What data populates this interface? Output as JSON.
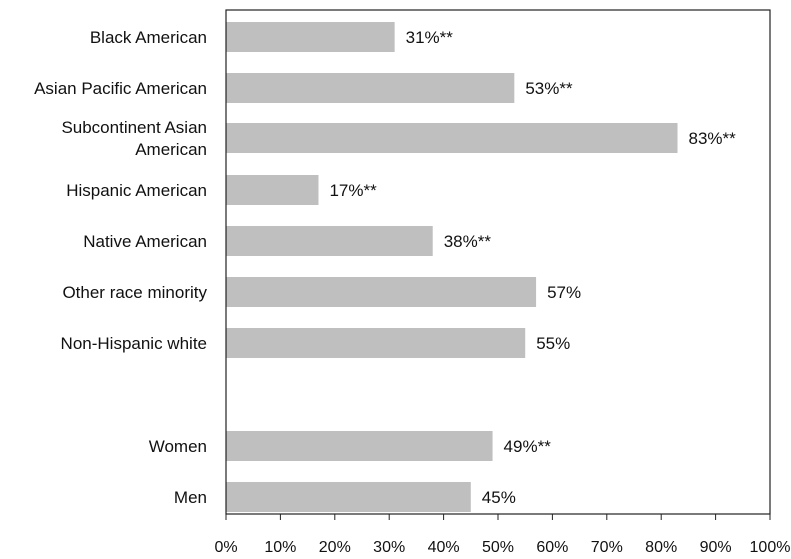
{
  "chart_data": {
    "type": "bar",
    "orientation": "horizontal",
    "xlim": [
      0,
      100
    ],
    "grid": false,
    "bar_color": "#bfbfbf",
    "x_ticks": [
      "0%",
      "10%",
      "20%",
      "30%",
      "40%",
      "50%",
      "60%",
      "70%",
      "80%",
      "90%",
      "100%"
    ],
    "categories": [
      {
        "label": [
          "Black American"
        ],
        "value": 31,
        "value_label": "31%**"
      },
      {
        "label": [
          "Asian Pacific American"
        ],
        "value": 53,
        "value_label": "53%**"
      },
      {
        "label": [
          "Subcontinent Asian",
          "American"
        ],
        "value": 83,
        "value_label": "83%**"
      },
      {
        "label": [
          "Hispanic American"
        ],
        "value": 17,
        "value_label": "17%**"
      },
      {
        "label": [
          "Native American"
        ],
        "value": 38,
        "value_label": "38%**"
      },
      {
        "label": [
          "Other race minority"
        ],
        "value": 57,
        "value_label": "57%"
      },
      {
        "label": [
          "Non-Hispanic white"
        ],
        "value": 55,
        "value_label": "55%"
      },
      {
        "label": [
          "Women"
        ],
        "value": 49,
        "value_label": "49%**"
      },
      {
        "label": [
          "Men"
        ],
        "value": 45,
        "value_label": "45%"
      }
    ]
  }
}
